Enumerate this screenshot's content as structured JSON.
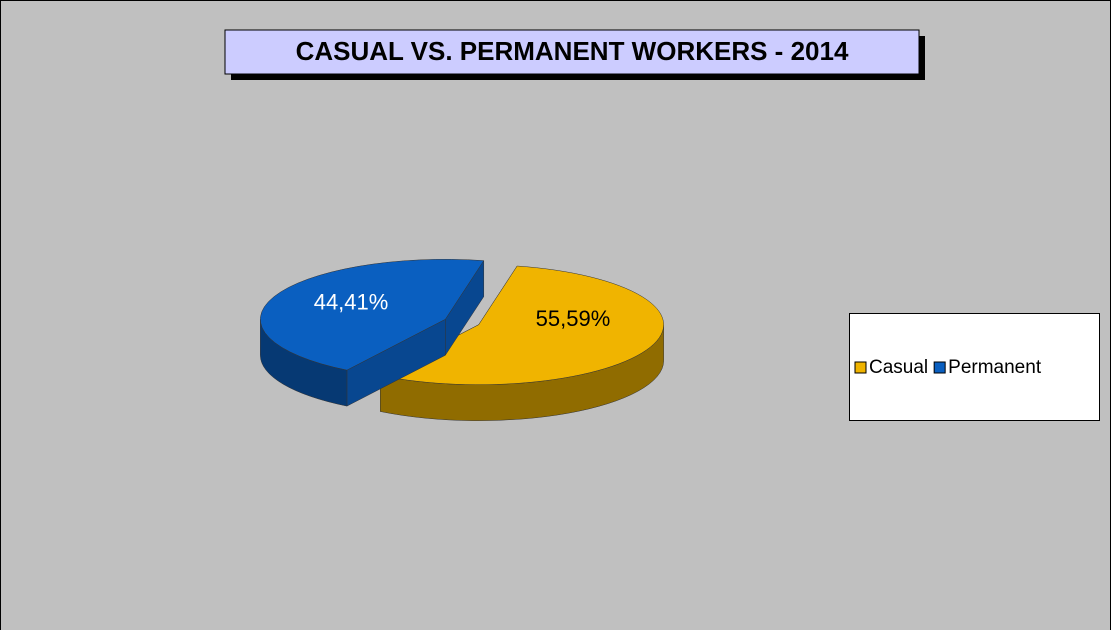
{
  "chart_data": {
    "type": "pie3d",
    "title": "CASUAL VS. PERMANENT WORKERS - 2014",
    "categories": [
      "Casual",
      "Permanent"
    ],
    "values": [
      55.59,
      44.41
    ],
    "value_labels": [
      "55,59%",
      "44,41%"
    ],
    "colors": [
      "#f0b400",
      "#0a5fc0"
    ],
    "label_colors": [
      "#000000",
      "#ffffff"
    ],
    "legend": "right"
  }
}
